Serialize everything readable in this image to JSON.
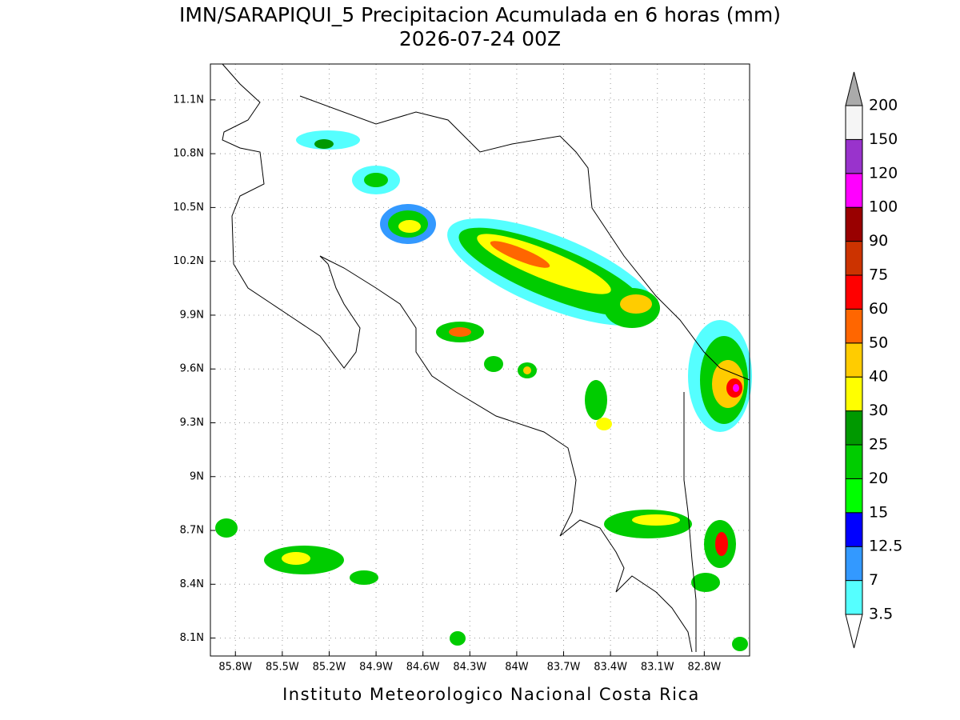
{
  "title": "IMN/SARAPIQUI_5 Precipitacion Acumulada en 6 horas (mm)",
  "subtitle": "2026-07-24 00Z",
  "footer": "Instituto Meteorologico Nacional Costa Rica",
  "map": {
    "lon_range": [
      -85.96,
      -82.51
    ],
    "lat_range": [
      8.0,
      11.3
    ],
    "lon_ticks": [
      {
        "value": -85.8,
        "label": "85.8W"
      },
      {
        "value": -85.5,
        "label": "85.5W"
      },
      {
        "value": -85.2,
        "label": "85.2W"
      },
      {
        "value": -84.9,
        "label": "84.9W"
      },
      {
        "value": -84.6,
        "label": "84.6W"
      },
      {
        "value": -84.3,
        "label": "84.3W"
      },
      {
        "value": -84.0,
        "label": "84W"
      },
      {
        "value": -83.7,
        "label": "83.7W"
      },
      {
        "value": -83.4,
        "label": "83.4W"
      },
      {
        "value": -83.1,
        "label": "83.1W"
      },
      {
        "value": -82.8,
        "label": "82.8W"
      }
    ],
    "lat_ticks": [
      {
        "value": 8.1,
        "label": "8.1N"
      },
      {
        "value": 8.4,
        "label": "8.4N"
      },
      {
        "value": 8.7,
        "label": "8.7N"
      },
      {
        "value": 9.0,
        "label": "9N"
      },
      {
        "value": 9.3,
        "label": "9.3N"
      },
      {
        "value": 9.6,
        "label": "9.6N"
      },
      {
        "value": 9.9,
        "label": "9.9N"
      },
      {
        "value": 10.2,
        "label": "10.2N"
      },
      {
        "value": 10.5,
        "label": "10.5N"
      },
      {
        "value": 10.8,
        "label": "10.8N"
      },
      {
        "value": 11.1,
        "label": "11.1N"
      }
    ]
  },
  "colorbar": {
    "levels": [
      3.5,
      7,
      12.5,
      15,
      20,
      25,
      30,
      40,
      50,
      60,
      75,
      90,
      100,
      120,
      150,
      200
    ],
    "colors": [
      "#55ffff",
      "#3399ff",
      "#0000ff",
      "#00ff00",
      "#00cc00",
      "#009900",
      "#ffff00",
      "#ffcc00",
      "#ff6600",
      "#ff0000",
      "#cc3300",
      "#990000",
      "#ff00ff",
      "#9933cc",
      "#f5f5f5"
    ],
    "under_color": "#ffffff",
    "over_color": "#aaaaaa"
  }
}
